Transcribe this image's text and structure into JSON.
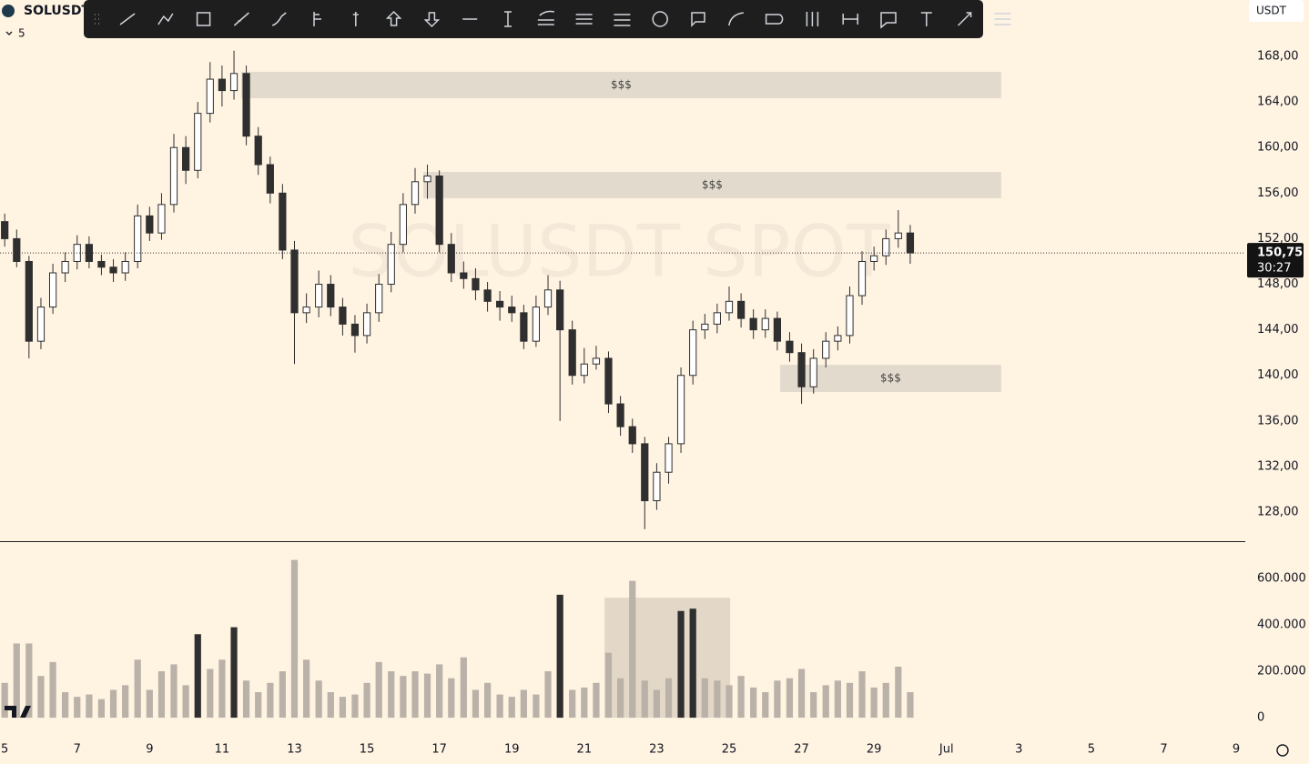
{
  "chart_data": {
    "type": "candlestick",
    "title": "SOLUSDT",
    "legend_toggle": "5",
    "watermark": "SOLUSDT SPOT",
    "currency": "USDT",
    "x": [
      5,
      5.33,
      5.67,
      6,
      6.33,
      6.67,
      7,
      7.33,
      7.67,
      8,
      8.33,
      8.67,
      9,
      9.33,
      9.67,
      10,
      10.33,
      10.67,
      11,
      11.33,
      11.67,
      12,
      12.33,
      12.67,
      13,
      13.33,
      13.67,
      14,
      14.33,
      14.67,
      15,
      15.33,
      15.67,
      16,
      16.33,
      16.67,
      17,
      17.33,
      17.67,
      18,
      18.33,
      18.67,
      19,
      19.33,
      19.67,
      20,
      20.33,
      20.67,
      21,
      21.33,
      21.67,
      22,
      22.33,
      22.67,
      23,
      23.33,
      23.67,
      24,
      24.33,
      24.67,
      25,
      25.33,
      25.67,
      26,
      26.33,
      26.67,
      27,
      27.33,
      27.67,
      28,
      28.33,
      28.67,
      29,
      29.33,
      29.67,
      30
    ],
    "open": [
      153.5,
      152,
      150,
      143,
      146,
      149,
      150,
      151.5,
      150,
      149.5,
      149,
      150,
      154,
      152.5,
      155,
      160,
      158,
      163,
      166,
      165,
      166.5,
      161,
      158.5,
      156,
      151,
      145.5,
      146,
      148,
      146,
      144.5,
      143.5,
      145.5,
      148,
      151.5,
      155,
      157,
      157.5,
      151.5,
      149,
      148.5,
      147.5,
      146.5,
      146,
      145.5,
      143,
      146,
      147.5,
      144,
      140,
      141,
      141.5,
      137.5,
      135.5,
      134,
      129,
      131.5,
      134,
      140,
      144,
      144.5,
      145.5,
      146.5,
      145,
      144,
      145,
      143,
      142,
      139,
      141.5,
      143,
      143.5,
      147,
      150,
      150.5,
      152,
      152.5
    ],
    "high": [
      154.2,
      152.8,
      150.5,
      146.8,
      149.8,
      150.8,
      152.3,
      152.2,
      150.6,
      150.2,
      150.8,
      155,
      154.8,
      156,
      161.2,
      161,
      164,
      167.5,
      167.2,
      168.5,
      167.2,
      161.8,
      159.2,
      156.8,
      151.8,
      147.2,
      149.2,
      148.8,
      146.8,
      145.3,
      146.3,
      148.9,
      152.6,
      156,
      158.2,
      158.5,
      158,
      152.5,
      150,
      149.4,
      148.2,
      147.4,
      147,
      146.2,
      147,
      148.8,
      148.3,
      144.8,
      142.4,
      142.6,
      142.1,
      138.2,
      136.2,
      134.6,
      132.3,
      134.6,
      140.7,
      144.8,
      145.4,
      146.3,
      147.8,
      147.2,
      145.8,
      145.8,
      145.6,
      143.8,
      142.8,
      142.3,
      143.8,
      144.3,
      147.8,
      150.9,
      151.3,
      152.8,
      154.5,
      153.2
    ],
    "low": [
      151.3,
      149.5,
      141.5,
      142.3,
      145.4,
      148.2,
      149.3,
      149.4,
      148.8,
      148.2,
      148.3,
      149.4,
      151.8,
      151.9,
      154.3,
      156.8,
      157.3,
      162.2,
      163.6,
      164.2,
      160.2,
      157.6,
      155.1,
      150.2,
      141,
      144.6,
      145.1,
      145.2,
      143.5,
      142,
      142.8,
      144.7,
      147.3,
      150.8,
      154.2,
      155.5,
      150.8,
      148.2,
      147.6,
      146.6,
      145.6,
      144.8,
      144.7,
      142.3,
      142.5,
      145.3,
      136,
      139.2,
      139.3,
      140.5,
      136.7,
      134.7,
      133.2,
      126.5,
      128.2,
      130.5,
      133.2,
      139.2,
      143.2,
      143.7,
      144.8,
      144.2,
      143.2,
      143.3,
      142.2,
      141.2,
      137.5,
      138.4,
      140.7,
      142.2,
      142.8,
      146.2,
      149.2,
      149.7,
      151.2,
      149.8
    ],
    "close": [
      152,
      150,
      143,
      146,
      149,
      150,
      151.5,
      150,
      149.5,
      149,
      150,
      154,
      152.5,
      155,
      160,
      158,
      163,
      166,
      165,
      166.5,
      161,
      158.5,
      156,
      151,
      145.5,
      146,
      148,
      146,
      144.5,
      143.5,
      145.5,
      148,
      151.5,
      155,
      157,
      157.5,
      151.5,
      149,
      148.5,
      147.5,
      146.5,
      146,
      145.5,
      143,
      146,
      147.5,
      144,
      140,
      141,
      141.5,
      137.5,
      135.5,
      134,
      129,
      131.5,
      134,
      140,
      144,
      144.5,
      145.5,
      146.5,
      145,
      144,
      145,
      143,
      142,
      139,
      141.5,
      143,
      143.5,
      147,
      150,
      150.5,
      152,
      152.5,
      150.75
    ],
    "volume": [
      150000,
      320000,
      320000,
      180000,
      240000,
      110000,
      90000,
      100000,
      80000,
      120000,
      140000,
      250000,
      120000,
      200000,
      230000,
      140000,
      360000,
      210000,
      250000,
      390000,
      160000,
      110000,
      150000,
      200000,
      680000,
      250000,
      160000,
      110000,
      90000,
      100000,
      150000,
      240000,
      200000,
      180000,
      200000,
      190000,
      230000,
      170000,
      260000,
      120000,
      150000,
      100000,
      90000,
      120000,
      100000,
      200000,
      530000,
      120000,
      130000,
      150000,
      280000,
      170000,
      590000,
      160000,
      120000,
      170000,
      460000,
      470000,
      170000,
      160000,
      140000,
      180000,
      130000,
      110000,
      160000,
      170000,
      210000,
      110000,
      140000,
      160000,
      150000,
      200000,
      130000,
      150000,
      220000,
      110000
    ],
    "up_color": "#ffffff",
    "down_color": "#2f2f2f",
    "volume_colors": [
      "#bab2a8",
      "#bab2a8",
      "#bab2a8",
      "#bab2a8",
      "#bab2a8",
      "#bab2a8",
      "#bab2a8",
      "#bab2a8",
      "#bab2a8",
      "#bab2a8",
      "#bab2a8",
      "#bab2a8",
      "#bab2a8",
      "#bab2a8",
      "#bab2a8",
      "#bab2a8",
      "#2f2f2f",
      "#bab2a8",
      "#bab2a8",
      "#2f2f2f",
      "#bab2a8",
      "#bab2a8",
      "#bab2a8",
      "#bab2a8",
      "#bab2a8",
      "#bab2a8",
      "#bab2a8",
      "#bab2a8",
      "#bab2a8",
      "#bab2a8",
      "#bab2a8",
      "#bab2a8",
      "#bab2a8",
      "#bab2a8",
      "#bab2a8",
      "#bab2a8",
      "#bab2a8",
      "#bab2a8",
      "#bab2a8",
      "#bab2a8",
      "#bab2a8",
      "#bab2a8",
      "#bab2a8",
      "#bab2a8",
      "#bab2a8",
      "#bab2a8",
      "#2f2f2f",
      "#bab2a8",
      "#bab2a8",
      "#bab2a8",
      "#bab2a8",
      "#bab2a8",
      "#bab2a8",
      "#bab2a8",
      "#bab2a8",
      "#bab2a8",
      "#2f2f2f",
      "#2f2f2f",
      "#bab2a8",
      "#bab2a8",
      "#bab2a8",
      "#bab2a8",
      "#bab2a8",
      "#bab2a8",
      "#bab2a8",
      "#bab2a8",
      "#bab2a8",
      "#bab2a8",
      "#bab2a8",
      "#bab2a8",
      "#bab2a8",
      "#bab2a8",
      "#bab2a8",
      "#bab2a8",
      "#bab2a8",
      "#bab2a8"
    ],
    "xlim": [
      4.87,
      39.25
    ],
    "xticks": [
      5,
      7,
      9,
      11,
      13,
      15,
      17,
      19,
      21,
      23,
      25,
      27,
      29,
      {
        "value": 31,
        "label": "Jul"
      },
      {
        "value": 33,
        "label": "3"
      },
      {
        "value": 35,
        "label": "5"
      },
      {
        "value": 37,
        "label": "7"
      },
      {
        "value": 39,
        "label": "9"
      }
    ],
    "ylim": [
      125.45,
      172.95
    ],
    "yticks": [
      {
        "value": 128,
        "label": "128,00"
      },
      {
        "value": 132,
        "label": "132,00"
      },
      {
        "value": 136,
        "label": "136,00"
      },
      {
        "value": 140,
        "label": "140,00"
      },
      {
        "value": 144,
        "label": "144,00"
      },
      {
        "value": 148,
        "label": "148,00"
      },
      {
        "value": 152,
        "label": "152,00"
      },
      {
        "value": 156,
        "label": "156,00"
      },
      {
        "value": 160,
        "label": "160,00"
      },
      {
        "value": 164,
        "label": "164,00"
      },
      {
        "value": 168,
        "label": "168,00"
      }
    ],
    "volume_ylim": [
      -82000,
      757000
    ],
    "volume_yticks": [
      {
        "value": 0,
        "label": "0"
      },
      {
        "value": 200000,
        "label": "200.000"
      },
      {
        "value": 400000,
        "label": "400.000"
      },
      {
        "value": 600000,
        "label": "600.000"
      }
    ],
    "zones": [
      {
        "x": [
          11.53,
          32.51
        ],
        "y": [
          164.33,
          166.64
        ],
        "label": "$$$"
      },
      {
        "x": [
          16.56,
          32.51
        ],
        "y": [
          155.55,
          157.86
        ],
        "label": "$$$"
      },
      {
        "x": [
          26.41,
          32.51
        ],
        "y": [
          138.54,
          140.93
        ],
        "label": "$$$"
      }
    ],
    "volume_box": {
      "x": [
        21.56,
        25.03
      ],
      "top": 517000
    },
    "last_price": {
      "value": 150.75,
      "label": "150,75"
    },
    "countdown": "30:27"
  }
}
